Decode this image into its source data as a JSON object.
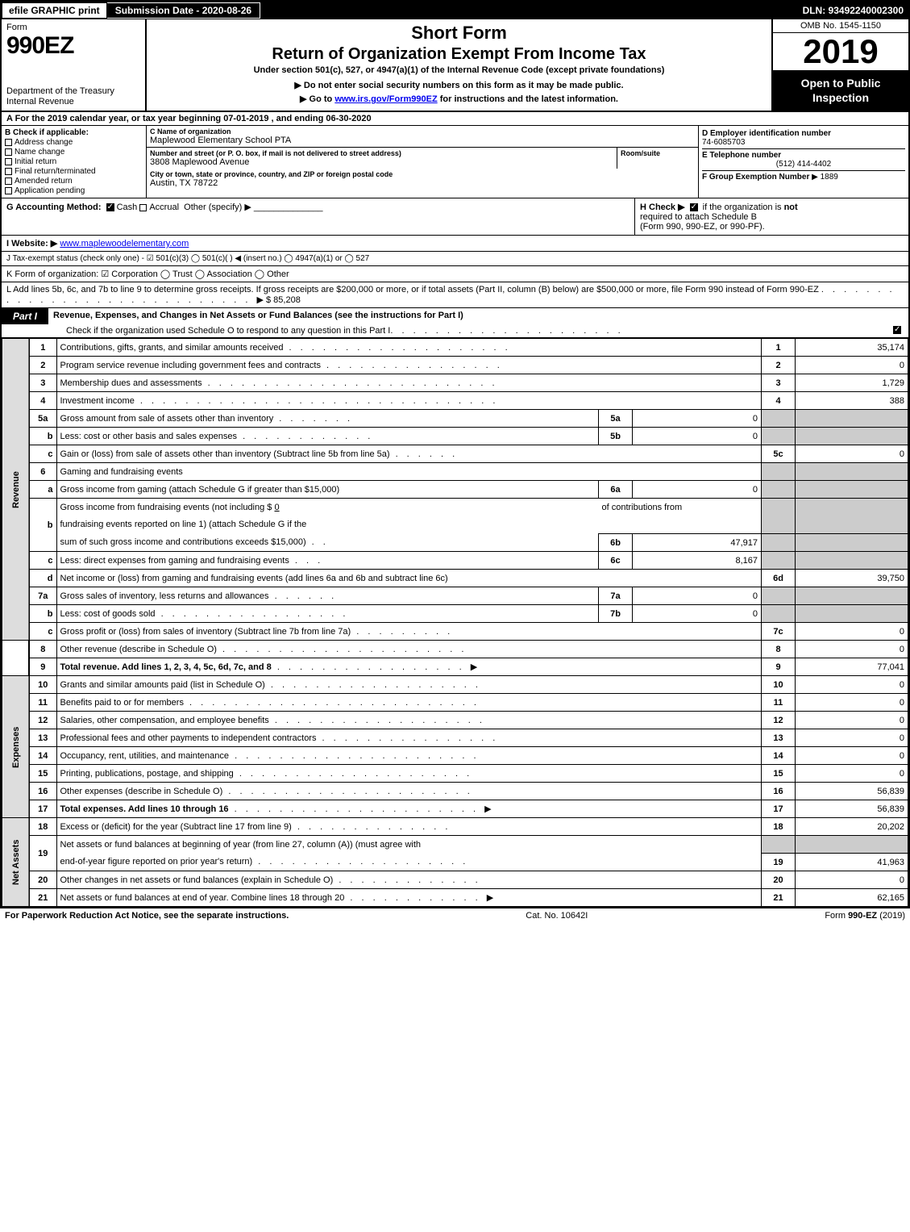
{
  "topbar": {
    "efile": "efile GRAPHIC print",
    "subdate": "Submission Date - 2020-08-26",
    "dln": "DLN: 93492240002300"
  },
  "header": {
    "form_word": "Form",
    "form_no": "990EZ",
    "short_form": "Short Form",
    "title": "Return of Organization Exempt From Income Tax",
    "under": "Under section 501(c), 527, or 4947(a)(1) of the Internal Revenue Code (except private foundations)",
    "note1": "▶ Do not enter social security numbers on this form as it may be made public.",
    "note2_pre": "▶ Go to ",
    "note2_link": "www.irs.gov/Form990EZ",
    "note2_post": " for instructions and the latest information.",
    "dept1": "Department of the Treasury",
    "dept2": "Internal Revenue",
    "omb": "OMB No. 1545-1150",
    "year": "2019",
    "open": "Open to Public Inspection"
  },
  "a_line": "A  For the 2019 calendar year, or tax year beginning 07-01-2019 , and ending 06-30-2020",
  "b": {
    "title": "B  Check if applicable:",
    "opts": [
      "Address change",
      "Name change",
      "Initial return",
      "Final return/terminated",
      "Amended return",
      "Application pending"
    ]
  },
  "c": {
    "name_lbl": "C Name of organization",
    "name": "Maplewood Elementary School PTA",
    "addr_lbl": "Number and street (or P. O. box, if mail is not delivered to street address)",
    "addr": "3808 Maplewood Avenue",
    "suite_lbl": "Room/suite",
    "city_lbl": "City or town, state or province, country, and ZIP or foreign postal code",
    "city": "Austin, TX  78722"
  },
  "d": {
    "ein_lbl": "D Employer identification number",
    "ein": "74-6085703",
    "tel_lbl": "E Telephone number",
    "tel": "(512) 414-4402",
    "grp_lbl": "F Group Exemption Number",
    "grp": "▶ 1889"
  },
  "g": {
    "label": "G Accounting Method:",
    "cash": "Cash",
    "accrual": "Accrual",
    "other": "Other (specify) ▶"
  },
  "h": {
    "text1": "H  Check ▶",
    "text2": "if the organization is",
    "not": "not",
    "text3": "required to attach Schedule B",
    "text4": "(Form 990, 990-EZ, or 990-PF)."
  },
  "i": {
    "label": "I Website: ▶",
    "val": "www.maplewoodelementary.com"
  },
  "j": "J Tax-exempt status (check only one) - ☑ 501(c)(3)  ◯ 501(c)(  ) ◀ (insert no.)  ◯ 4947(a)(1) or  ◯ 527",
  "k": "K Form of organization:   ☑ Corporation   ◯ Trust   ◯ Association   ◯ Other",
  "l": {
    "text": "L Add lines 5b, 6c, and 7b to line 9 to determine gross receipts. If gross receipts are $200,000 or more, or if total assets (Part II, column (B) below) are $500,000 or more, file Form 990 instead of Form 990-EZ",
    "amt": "▶ $ 85,208"
  },
  "part1": {
    "tab": "Part I",
    "title": "Revenue, Expenses, and Changes in Net Assets or Fund Balances (see the instructions for Part I)",
    "sub": "Check if the organization used Schedule O to respond to any question in this Part I"
  },
  "sides": {
    "rev": "Revenue",
    "exp": "Expenses",
    "na": "Net Assets"
  },
  "rows": {
    "r1": {
      "n": "1",
      "d": "Contributions, gifts, grants, and similar amounts received",
      "ln": "1",
      "v": "35,174"
    },
    "r2": {
      "n": "2",
      "d": "Program service revenue including government fees and contracts",
      "ln": "2",
      "v": "0"
    },
    "r3": {
      "n": "3",
      "d": "Membership dues and assessments",
      "ln": "3",
      "v": "1,729"
    },
    "r4": {
      "n": "4",
      "d": "Investment income",
      "ln": "4",
      "v": "388"
    },
    "r5a": {
      "n": "5a",
      "d": "Gross amount from sale of assets other than inventory",
      "ml": "5a",
      "mv": "0"
    },
    "r5b": {
      "n": "b",
      "d": "Less: cost or other basis and sales expenses",
      "ml": "5b",
      "mv": "0"
    },
    "r5c": {
      "n": "c",
      "d": "Gain or (loss) from sale of assets other than inventory (Subtract line 5b from line 5a)",
      "ln": "5c",
      "v": "0"
    },
    "r6": {
      "n": "6",
      "d": "Gaming and fundraising events"
    },
    "r6a": {
      "n": "a",
      "d": "Gross income from gaming (attach Schedule G if greater than $15,000)",
      "ml": "6a",
      "mv": "0"
    },
    "r6b": {
      "n": "b",
      "d1": "Gross income from fundraising events (not including $",
      "d1v": "0",
      "d1post": "of contributions from",
      "d2": "fundraising events reported on line 1) (attach Schedule G if the",
      "d3": "sum of such gross income and contributions exceeds $15,000)",
      "ml": "6b",
      "mv": "47,917"
    },
    "r6c": {
      "n": "c",
      "d": "Less: direct expenses from gaming and fundraising events",
      "ml": "6c",
      "mv": "8,167"
    },
    "r6d": {
      "n": "d",
      "d": "Net income or (loss) from gaming and fundraising events (add lines 6a and 6b and subtract line 6c)",
      "ln": "6d",
      "v": "39,750"
    },
    "r7a": {
      "n": "7a",
      "d": "Gross sales of inventory, less returns and allowances",
      "ml": "7a",
      "mv": "0"
    },
    "r7b": {
      "n": "b",
      "d": "Less: cost of goods sold",
      "ml": "7b",
      "mv": "0"
    },
    "r7c": {
      "n": "c",
      "d": "Gross profit or (loss) from sales of inventory (Subtract line 7b from line 7a)",
      "ln": "7c",
      "v": "0"
    },
    "r8": {
      "n": "8",
      "d": "Other revenue (describe in Schedule O)",
      "ln": "8",
      "v": "0"
    },
    "r9": {
      "n": "9",
      "d": "Total revenue. Add lines 1, 2, 3, 4, 5c, 6d, 7c, and 8",
      "ln": "9",
      "v": "77,041",
      "bold": true
    },
    "r10": {
      "n": "10",
      "d": "Grants and similar amounts paid (list in Schedule O)",
      "ln": "10",
      "v": "0"
    },
    "r11": {
      "n": "11",
      "d": "Benefits paid to or for members",
      "ln": "11",
      "v": "0"
    },
    "r12": {
      "n": "12",
      "d": "Salaries, other compensation, and employee benefits",
      "ln": "12",
      "v": "0"
    },
    "r13": {
      "n": "13",
      "d": "Professional fees and other payments to independent contractors",
      "ln": "13",
      "v": "0"
    },
    "r14": {
      "n": "14",
      "d": "Occupancy, rent, utilities, and maintenance",
      "ln": "14",
      "v": "0"
    },
    "r15": {
      "n": "15",
      "d": "Printing, publications, postage, and shipping",
      "ln": "15",
      "v": "0"
    },
    "r16": {
      "n": "16",
      "d": "Other expenses (describe in Schedule O)",
      "ln": "16",
      "v": "56,839"
    },
    "r17": {
      "n": "17",
      "d": "Total expenses. Add lines 10 through 16",
      "ln": "17",
      "v": "56,839",
      "bold": true
    },
    "r18": {
      "n": "18",
      "d": "Excess or (deficit) for the year (Subtract line 17 from line 9)",
      "ln": "18",
      "v": "20,202"
    },
    "r19": {
      "n": "19",
      "d1": "Net assets or fund balances at beginning of year (from line 27, column (A)) (must agree with",
      "d2": "end-of-year figure reported on prior year's return)",
      "ln": "19",
      "v": "41,963"
    },
    "r20": {
      "n": "20",
      "d": "Other changes in net assets or fund balances (explain in Schedule O)",
      "ln": "20",
      "v": "0"
    },
    "r21": {
      "n": "21",
      "d": "Net assets or fund balances at end of year. Combine lines 18 through 20",
      "ln": "21",
      "v": "62,165"
    }
  },
  "footer": {
    "left": "For Paperwork Reduction Act Notice, see the separate instructions.",
    "mid": "Cat. No. 10642I",
    "right": "Form 990-EZ (2019)"
  }
}
